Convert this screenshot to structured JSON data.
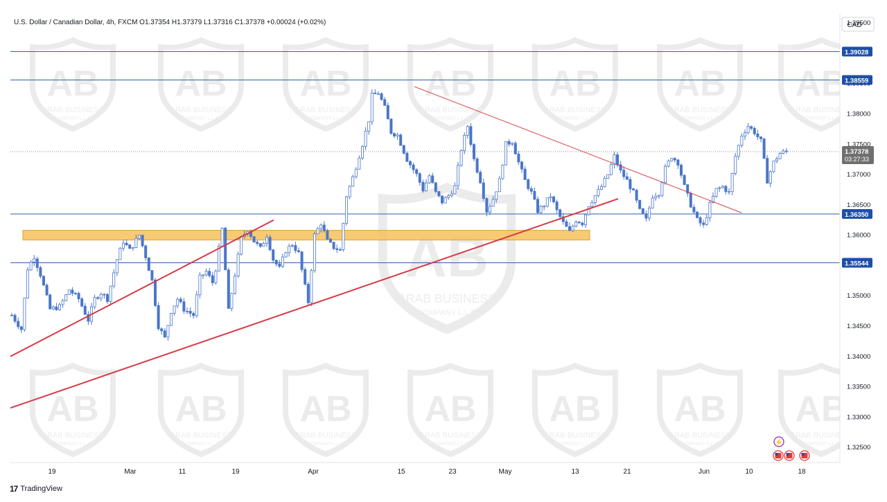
{
  "header": {
    "symbol_line": "U.S. Dollar / Canadian Dollar, 4h, FXCM  O1.37354  H1.37379  L1.37316  C1.37378  +0.00024 (+0.02%)"
  },
  "currency_label": "CAD",
  "footer": {
    "brand": "TradingView"
  },
  "watermark": {
    "text": "ARAB BUSINESS",
    "subtext": "COMPANY L.L.C",
    "logo": "AB"
  },
  "colors": {
    "bar": "#4a76c9",
    "level_line": "#2e5ea8",
    "trend_line": "#d63a45",
    "zone_fill": "#f8c15c",
    "price_label_bg": "#1e4fa8",
    "current_label_bg": "#6f6f6f"
  },
  "chart_data": {
    "type": "candlestick",
    "title": "U.S. Dollar / Canadian Dollar, 4h, FXCM",
    "x_ticks": [
      "19",
      "Mar",
      "11",
      "19",
      "Apr",
      "15",
      "23",
      "May",
      "13",
      "21",
      "Jun",
      "10",
      "18"
    ],
    "y_ticks": [
      "1.39500",
      "1.39000",
      "1.38500",
      "1.38000",
      "1.37500",
      "1.37000",
      "1.36500",
      "1.36000",
      "1.35500",
      "1.35000",
      "1.34500",
      "1.34000",
      "1.33500",
      "1.33000",
      "1.32500"
    ],
    "ylim": [
      1.3225,
      1.3965
    ],
    "horizontal_levels": [
      {
        "value": 1.39028,
        "label": "1.39028"
      },
      {
        "value": 1.38559,
        "label": "1.38559"
      },
      {
        "value": 1.3635,
        "label": "1.36350"
      },
      {
        "value": 1.35544,
        "label": "1.35544"
      }
    ],
    "current_price": {
      "value": 1.37378,
      "label": "1.37378",
      "countdown": "03:27:33"
    },
    "ohlc": {
      "open": 1.37354,
      "high": 1.37379,
      "low": 1.37316,
      "close": 1.37378,
      "change": "+0.00024 (+0.02%)"
    },
    "price_path": [
      [
        0,
        1.3468
      ],
      [
        3,
        1.3445
      ],
      [
        5,
        1.3545
      ],
      [
        7,
        1.3565
      ],
      [
        9,
        1.3535
      ],
      [
        12,
        1.3478
      ],
      [
        15,
        1.3482
      ],
      [
        18,
        1.351
      ],
      [
        21,
        1.3495
      ],
      [
        24,
        1.346
      ],
      [
        26,
        1.3495
      ],
      [
        28,
        1.3505
      ],
      [
        30,
        1.3495
      ],
      [
        33,
        1.356
      ],
      [
        35,
        1.359
      ],
      [
        37,
        1.3575
      ],
      [
        40,
        1.36
      ],
      [
        42,
        1.3565
      ],
      [
        44,
        1.3525
      ],
      [
        46,
        1.345
      ],
      [
        48,
        1.343
      ],
      [
        50,
        1.3475
      ],
      [
        52,
        1.3495
      ],
      [
        54,
        1.3478
      ],
      [
        57,
        1.3468
      ],
      [
        59,
        1.353
      ],
      [
        61,
        1.354
      ],
      [
        63,
        1.3522
      ],
      [
        64,
        1.3545
      ],
      [
        66,
        1.361
      ],
      [
        68,
        1.3475
      ],
      [
        70,
        1.3535
      ],
      [
        72,
        1.3595
      ],
      [
        74,
        1.361
      ],
      [
        76,
        1.359
      ],
      [
        78,
        1.3578
      ],
      [
        80,
        1.36
      ],
      [
        82,
        1.356
      ],
      [
        84,
        1.3545
      ],
      [
        86,
        1.3575
      ],
      [
        88,
        1.3585
      ],
      [
        90,
        1.357
      ],
      [
        92,
        1.3515
      ],
      [
        93,
        1.349
      ],
      [
        95,
        1.36
      ],
      [
        97,
        1.362
      ],
      [
        99,
        1.359
      ],
      [
        101,
        1.358
      ],
      [
        103,
        1.3575
      ],
      [
        105,
        1.3665
      ],
      [
        107,
        1.3695
      ],
      [
        110,
        1.375
      ],
      [
        112,
        1.379
      ],
      [
        113,
        1.383
      ],
      [
        115,
        1.3835
      ],
      [
        117,
        1.381
      ],
      [
        119,
        1.377
      ],
      [
        121,
        1.3765
      ],
      [
        124,
        1.3725
      ],
      [
        127,
        1.37
      ],
      [
        129,
        1.3675
      ],
      [
        131,
        1.3698
      ],
      [
        133,
        1.367
      ],
      [
        135,
        1.3655
      ],
      [
        137,
        1.3665
      ],
      [
        139,
        1.368
      ],
      [
        141,
        1.3742
      ],
      [
        143,
        1.378
      ],
      [
        145,
        1.3725
      ],
      [
        147,
        1.369
      ],
      [
        149,
        1.364
      ],
      [
        151,
        1.366
      ],
      [
        153,
        1.369
      ],
      [
        155,
        1.375
      ],
      [
        157,
        1.3755
      ],
      [
        159,
        1.372
      ],
      [
        161,
        1.369
      ],
      [
        163,
        1.367
      ],
      [
        165,
        1.364
      ],
      [
        167,
        1.365
      ],
      [
        169,
        1.3665
      ],
      [
        171,
        1.364
      ],
      [
        173,
        1.362
      ],
      [
        175,
        1.3605
      ],
      [
        177,
        1.3625
      ],
      [
        179,
        1.362
      ],
      [
        181,
        1.365
      ],
      [
        183,
        1.3665
      ],
      [
        185,
        1.368
      ],
      [
        187,
        1.37
      ],
      [
        189,
        1.373
      ],
      [
        191,
        1.3705
      ],
      [
        193,
        1.369
      ],
      [
        195,
        1.367
      ],
      [
        197,
        1.364
      ],
      [
        199,
        1.3625
      ],
      [
        201,
        1.3665
      ],
      [
        203,
        1.367
      ],
      [
        205,
        1.371
      ],
      [
        207,
        1.373
      ],
      [
        209,
        1.372
      ],
      [
        211,
        1.368
      ],
      [
        213,
        1.365
      ],
      [
        215,
        1.3625
      ],
      [
        217,
        1.3615
      ],
      [
        219,
        1.365
      ],
      [
        221,
        1.3675
      ],
      [
        223,
        1.368
      ],
      [
        225,
        1.367
      ],
      [
        227,
        1.373
      ],
      [
        229,
        1.3765
      ],
      [
        231,
        1.378
      ],
      [
        233,
        1.377
      ],
      [
        235,
        1.3755
      ],
      [
        237,
        1.369
      ],
      [
        239,
        1.372
      ],
      [
        241,
        1.3735
      ],
      [
        243,
        1.3738
      ]
    ],
    "annotations": [
      {
        "type": "horizontal_zone",
        "low": 1.3592,
        "high": 1.3608
      },
      {
        "type": "trendline",
        "label": "support-long"
      },
      {
        "type": "trendline",
        "label": "support-short"
      },
      {
        "type": "trendline",
        "label": "descending-resistance"
      }
    ]
  }
}
